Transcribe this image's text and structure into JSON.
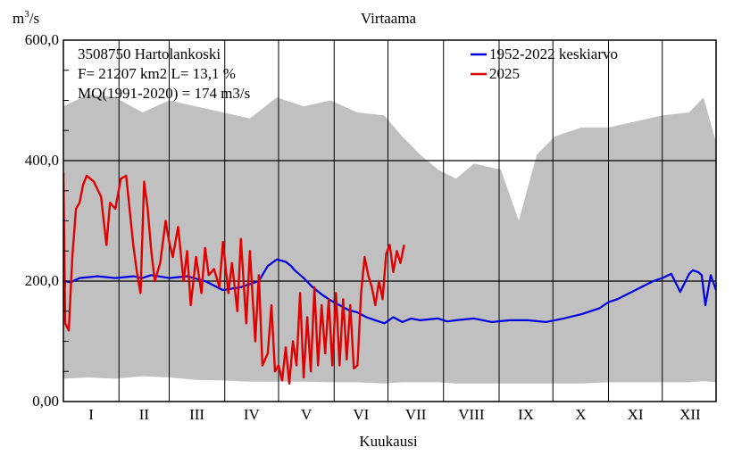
{
  "chart_data": {
    "type": "line",
    "title": "Virtaama",
    "ylabel_base": "m",
    "ylabel_sup": "3",
    "ylabel_rest": "/s",
    "xlabel": "Kuukausi",
    "ylim": [
      0,
      600
    ],
    "ytick_labels": [
      {
        "value": 0,
        "label": "0,00"
      },
      {
        "value": 200,
        "label": "200,0"
      },
      {
        "value": 400,
        "label": "400,0"
      },
      {
        "value": 600,
        "label": "600,0"
      }
    ],
    "months": [
      "I",
      "II",
      "III",
      "IV",
      "V",
      "VI",
      "VII",
      "VIII",
      "IX",
      "X",
      "XI",
      "XII"
    ],
    "x_unit": "day of year",
    "xlim": [
      1,
      365
    ],
    "grid": "major lines at 200 m3/s intervals and month boundaries",
    "info": [
      "3508750 Hartolankoski",
      "F=  21207 km2 L=  13,1 %",
      "MQ(1991-2020) = 174 m3/s"
    ],
    "legend_position": "top-right",
    "envelope": {
      "name": "historical range (min-max)",
      "color": "#c0c0c0",
      "x": [
        1,
        15,
        30,
        45,
        60,
        75,
        90,
        105,
        120,
        135,
        150,
        165,
        180,
        190,
        200,
        210,
        220,
        230,
        245,
        255,
        265,
        275,
        290,
        305,
        320,
        335,
        350,
        358,
        365
      ],
      "upper": [
        490,
        510,
        505,
        480,
        500,
        490,
        480,
        470,
        505,
        490,
        500,
        480,
        475,
        440,
        410,
        385,
        370,
        395,
        385,
        300,
        410,
        440,
        455,
        455,
        465,
        475,
        480,
        505,
        430
      ],
      "lower": [
        38,
        40,
        38,
        42,
        40,
        36,
        35,
        33,
        33,
        33,
        32,
        32,
        30,
        32,
        32,
        32,
        30,
        30,
        30,
        30,
        30,
        30,
        30,
        32,
        32,
        32,
        32,
        34,
        32
      ]
    },
    "series": [
      {
        "name": "1952-2022 keskiarvo",
        "color": "#0000e0",
        "x": [
          1,
          2,
          5,
          10,
          20,
          30,
          40,
          45,
          50,
          60,
          70,
          80,
          90,
          100,
          110,
          115,
          120,
          125,
          128,
          130,
          135,
          140,
          145,
          150,
          155,
          160,
          165,
          170,
          175,
          180,
          185,
          190,
          195,
          200,
          210,
          215,
          220,
          230,
          240,
          250,
          260,
          270,
          280,
          290,
          300,
          305,
          310,
          320,
          330,
          335,
          340,
          345,
          350,
          352,
          355,
          357,
          359,
          362,
          365
        ],
        "values": [
          160,
          200,
          198,
          205,
          208,
          205,
          208,
          205,
          210,
          205,
          208,
          200,
          185,
          190,
          200,
          225,
          236,
          232,
          225,
          218,
          205,
          190,
          178,
          168,
          160,
          152,
          148,
          140,
          135,
          130,
          140,
          132,
          138,
          135,
          138,
          133,
          135,
          138,
          132,
          135,
          135,
          132,
          138,
          145,
          155,
          165,
          170,
          185,
          200,
          205,
          212,
          182,
          212,
          218,
          215,
          210,
          160,
          210,
          185
        ]
      },
      {
        "name": "2025",
        "color": "#e00000",
        "x": [
          1,
          2,
          4,
          6,
          8,
          10,
          12,
          14,
          18,
          22,
          25,
          27,
          30,
          33,
          36,
          40,
          42,
          44,
          46,
          48,
          50,
          52,
          55,
          58,
          60,
          62,
          65,
          68,
          70,
          72,
          75,
          78,
          80,
          82,
          85,
          88,
          90,
          93,
          95,
          98,
          100,
          103,
          105,
          108,
          110,
          112,
          115,
          117,
          119,
          121,
          123,
          125,
          127,
          129,
          131,
          133,
          135,
          137,
          139,
          141,
          143,
          145,
          147,
          149,
          151,
          153,
          155,
          157,
          159,
          161,
          163,
          165,
          167,
          169,
          171,
          173,
          175,
          177,
          179,
          181,
          183,
          185,
          187,
          189,
          191
        ],
        "values": [
          380,
          130,
          118,
          240,
          320,
          330,
          360,
          375,
          365,
          340,
          260,
          330,
          320,
          370,
          375,
          260,
          215,
          180,
          365,
          320,
          250,
          200,
          230,
          300,
          265,
          240,
          290,
          200,
          250,
          160,
          240,
          180,
          255,
          210,
          220,
          190,
          265,
          180,
          230,
          150,
          270,
          130,
          250,
          100,
          210,
          60,
          80,
          160,
          50,
          60,
          35,
          90,
          30,
          100,
          60,
          180,
          40,
          140,
          50,
          190,
          60,
          160,
          80,
          170,
          60,
          180,
          60,
          170,
          70,
          160,
          55,
          60,
          180,
          240,
          210,
          190,
          160,
          200,
          170,
          245,
          260,
          215,
          250,
          230,
          260
        ]
      }
    ]
  }
}
